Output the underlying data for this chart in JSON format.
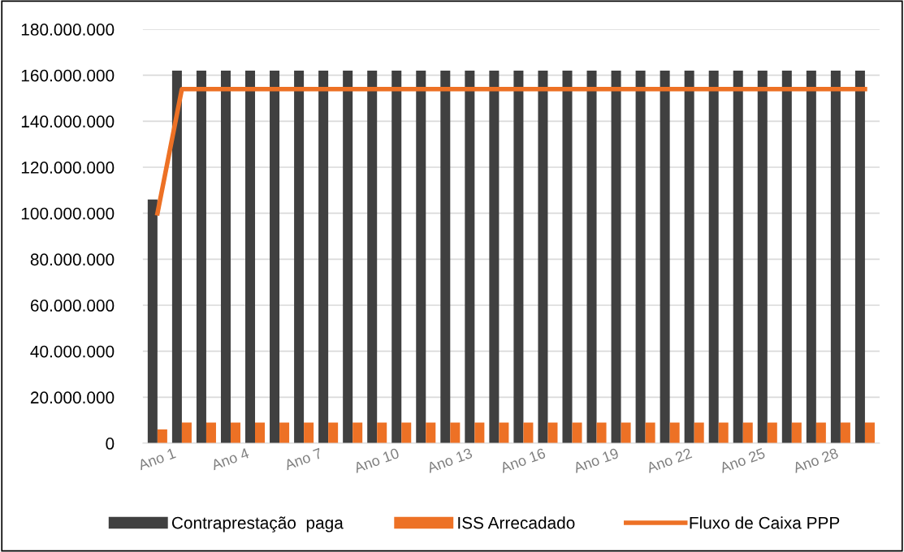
{
  "chart_data": {
    "type": "bar",
    "categories": [
      "Ano 1",
      null,
      null,
      "Ano 4",
      null,
      null,
      "Ano 7",
      null,
      null,
      "Ano 10",
      null,
      null,
      "Ano 13",
      null,
      null,
      "Ano 16",
      null,
      null,
      "Ano 19",
      null,
      null,
      "Ano 22",
      null,
      null,
      "Ano 25",
      null,
      null,
      "Ano 28",
      null,
      null
    ],
    "series": [
      {
        "name": "Contraprestação  paga",
        "color": "#404040",
        "values": [
          106000000,
          162000000,
          162000000,
          162000000,
          162000000,
          162000000,
          162000000,
          162000000,
          162000000,
          162000000,
          162000000,
          162000000,
          162000000,
          162000000,
          162000000,
          162000000,
          162000000,
          162000000,
          162000000,
          162000000,
          162000000,
          162000000,
          162000000,
          162000000,
          162000000,
          162000000,
          162000000,
          162000000,
          162000000,
          162000000
        ]
      },
      {
        "name": "ISS Arrecadado",
        "color": "#ed7125",
        "values": [
          6000000,
          9000000,
          9000000,
          9000000,
          9000000,
          9000000,
          9000000,
          9000000,
          9000000,
          9000000,
          9000000,
          9000000,
          9000000,
          9000000,
          9000000,
          9000000,
          9000000,
          9000000,
          9000000,
          9000000,
          9000000,
          9000000,
          9000000,
          9000000,
          9000000,
          9000000,
          9000000,
          9000000,
          9000000,
          9000000
        ]
      },
      {
        "name": "Fluxo de Caixa PPP",
        "type": "line",
        "color": "#ed7125",
        "values": [
          100000000,
          154000000,
          154000000,
          154000000,
          154000000,
          154000000,
          154000000,
          154000000,
          154000000,
          154000000,
          154000000,
          154000000,
          154000000,
          154000000,
          154000000,
          154000000,
          154000000,
          154000000,
          154000000,
          154000000,
          154000000,
          154000000,
          154000000,
          154000000,
          154000000,
          154000000,
          154000000,
          154000000,
          154000000,
          154000000
        ]
      }
    ],
    "ylim": [
      0,
      180000000
    ],
    "yticks": [
      {
        "value": 0,
        "label": "0"
      },
      {
        "value": 20000000,
        "label": "20.000.000"
      },
      {
        "value": 40000000,
        "label": "40.000.000"
      },
      {
        "value": 60000000,
        "label": "60.000.000"
      },
      {
        "value": 80000000,
        "label": "80.000.000"
      },
      {
        "value": 100000000,
        "label": "100.000.000"
      },
      {
        "value": 120000000,
        "label": "120.000.000"
      },
      {
        "value": 140000000,
        "label": "140.000.000"
      },
      {
        "value": 160000000,
        "label": "160.000.000"
      },
      {
        "value": 180000000,
        "label": "180.000.000"
      }
    ],
    "grid": "y",
    "legend": "bottom"
  }
}
